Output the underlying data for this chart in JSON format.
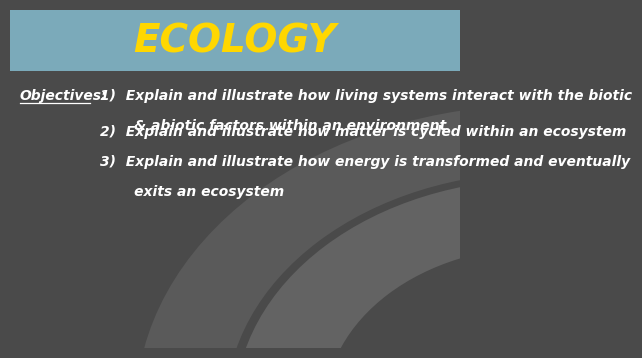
{
  "title": "ECOLOGY",
  "title_color": "#FFD700",
  "title_bg_color": "#7BAABA",
  "body_bg_color": "#4A4A4A",
  "objectives_label": "Objectives:",
  "objectives_label_color": "#FFFFFF",
  "text_color": "#FFFFFF",
  "items": [
    [
      "1)  Explain and illustrate how living systems interact with the biotic",
      "       & abiotic factors within an environment"
    ],
    [
      "2)  Explain and illustrate how matter is cycled within an ecosystem"
    ],
    [
      "3)  Explain and illustrate how energy is transformed and eventually",
      "       exits an ecosystem"
    ]
  ],
  "title_fontsize": 28,
  "body_fontsize": 10.0,
  "label_fontsize": 10.0
}
